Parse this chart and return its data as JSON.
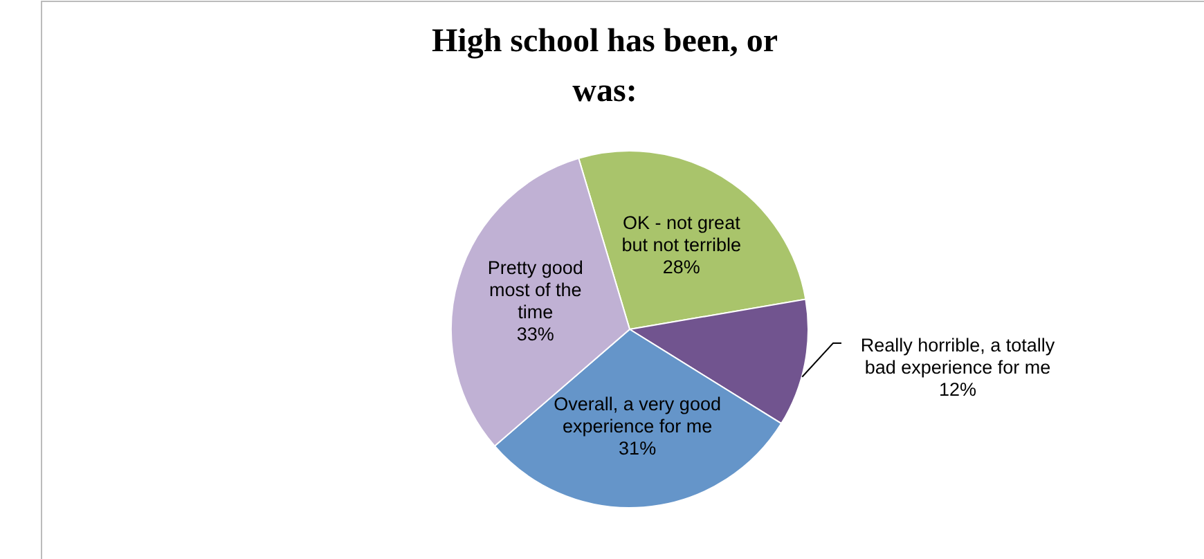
{
  "chart_data": {
    "type": "pie",
    "title": "High school has been, or was:",
    "categories": [
      "OK - not great but not terrible",
      "Really horrible, a totally bad experience for me",
      "Overall, a very good experience for me",
      "Pretty good most of the time"
    ],
    "values": [
      28,
      12,
      31,
      33
    ],
    "colors": [
      "#a9c46b",
      "#71548f",
      "#6595c9",
      "#c0b1d4"
    ],
    "value_labels": [
      "28%",
      "12%",
      "31%",
      "33%"
    ]
  }
}
